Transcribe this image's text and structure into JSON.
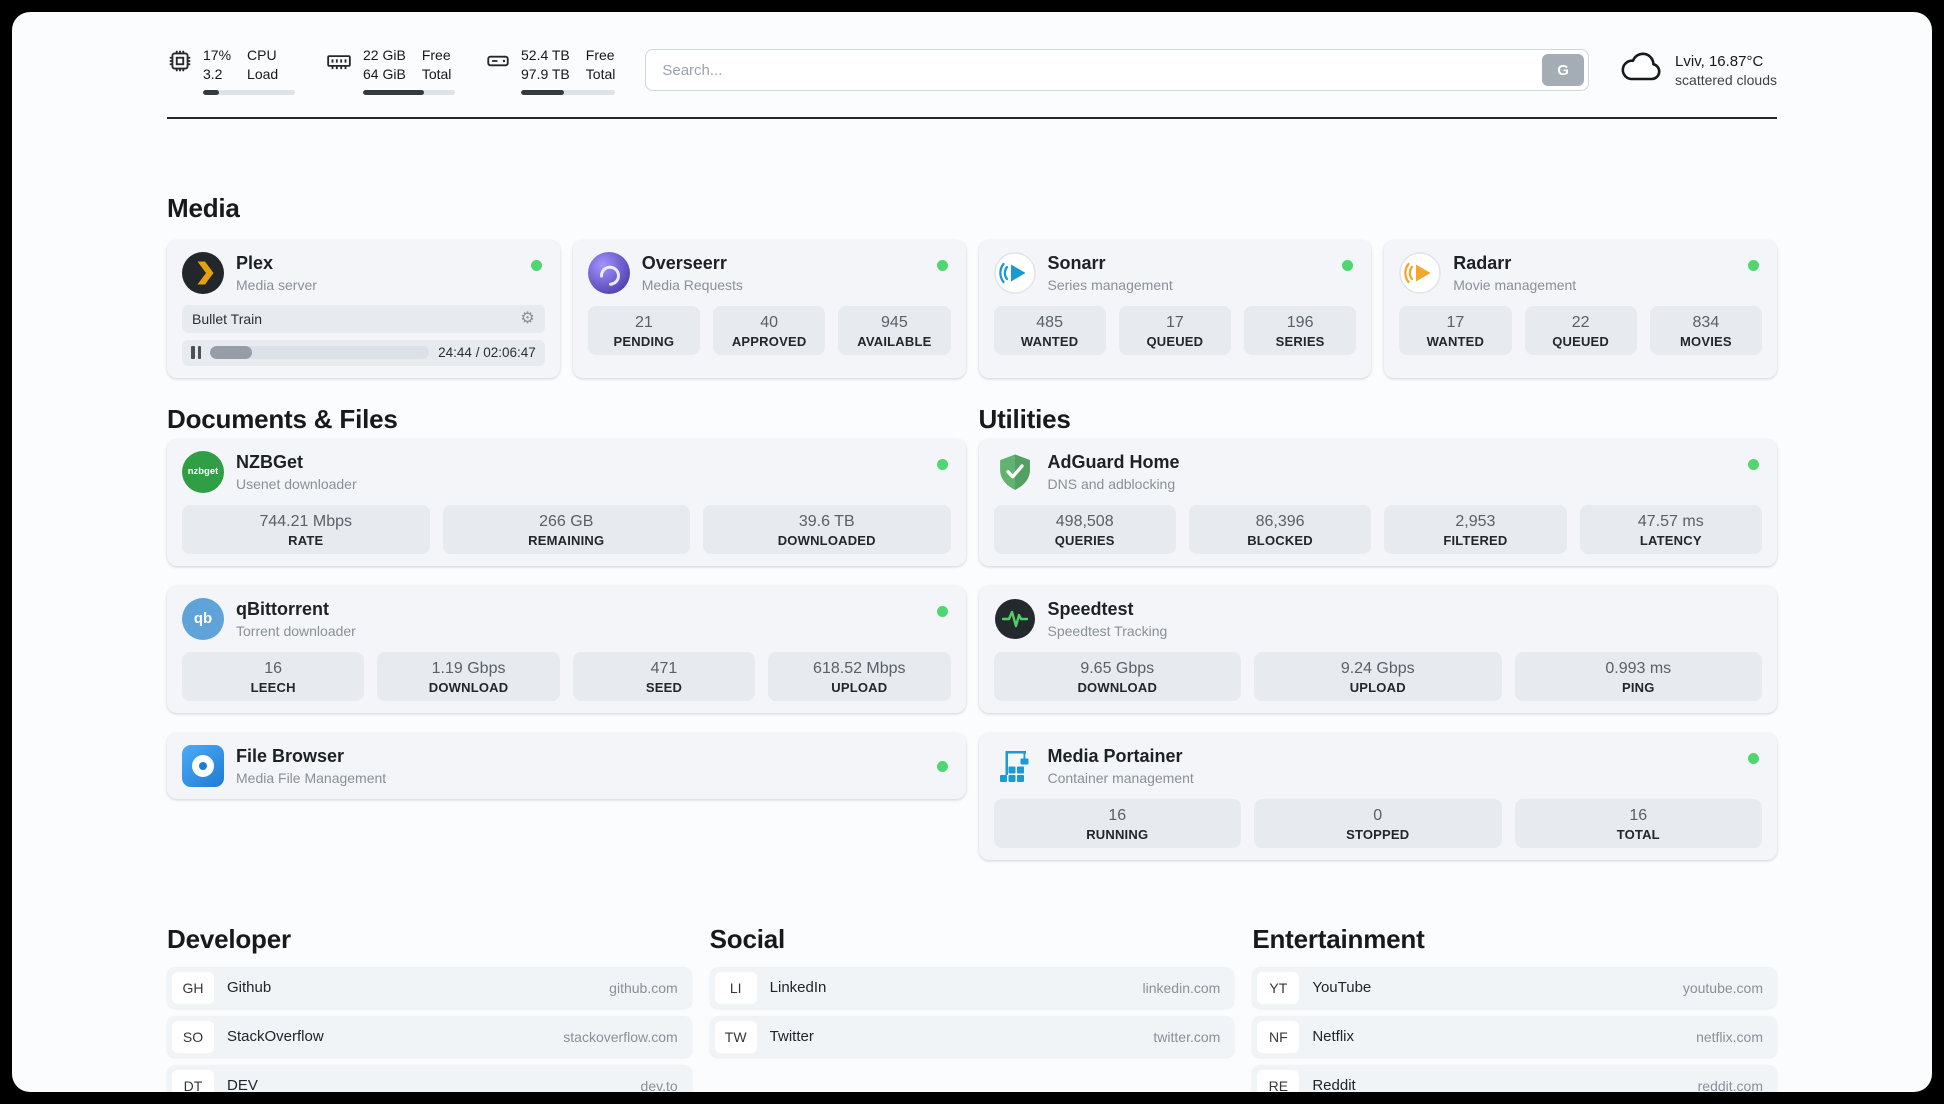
{
  "colors": {
    "status_online": "#4fd671",
    "bar_fill": "#343a40",
    "accent_green": "#51cf66"
  },
  "icons": {
    "gear": "⚙"
  },
  "topbar": {
    "cpu": {
      "value1": "17%",
      "value2": "3.2",
      "label1": "CPU",
      "label2": "Load",
      "bar": 17
    },
    "ram": {
      "value1": "22 GiB",
      "value2": "64 GiB",
      "label1": "Free",
      "label2": "Total",
      "bar": 66
    },
    "disk": {
      "value1": "52.4 TB",
      "value2": "97.9 TB",
      "label1": "Free",
      "label2": "Total",
      "bar": 46
    },
    "search": {
      "placeholder": "Search...",
      "button_label": "G"
    },
    "weather": {
      "location": "Lviv, 16.87°C",
      "condition": "scattered clouds"
    }
  },
  "media": {
    "title": "Media",
    "plex": {
      "name": "Plex",
      "subtitle": "Media server",
      "now_playing": "Bullet Train",
      "time": "24:44 / 02:06:47",
      "progress": 19
    },
    "overseerr": {
      "name": "Overseerr",
      "subtitle": "Media Requests",
      "stats": [
        {
          "value": "21",
          "label": "PENDING"
        },
        {
          "value": "40",
          "label": "APPROVED"
        },
        {
          "value": "945",
          "label": "AVAILABLE"
        }
      ]
    },
    "sonarr": {
      "name": "Sonarr",
      "subtitle": "Series management",
      "stats": [
        {
          "value": "485",
          "label": "WANTED"
        },
        {
          "value": "17",
          "label": "QUEUED"
        },
        {
          "value": "196",
          "label": "SERIES"
        }
      ]
    },
    "radarr": {
      "name": "Radarr",
      "subtitle": "Movie management",
      "stats": [
        {
          "value": "17",
          "label": "WANTED"
        },
        {
          "value": "22",
          "label": "QUEUED"
        },
        {
          "value": "834",
          "label": "MOVIES"
        }
      ]
    }
  },
  "documents": {
    "title": "Documents & Files",
    "nzbget": {
      "name": "NZBGet",
      "subtitle": "Usenet downloader",
      "icon_text": "nzbget",
      "stats": [
        {
          "value": "744.21 Mbps",
          "label": "RATE"
        },
        {
          "value": "266 GB",
          "label": "REMAINING"
        },
        {
          "value": "39.6 TB",
          "label": "DOWNLOADED"
        }
      ]
    },
    "qbittorrent": {
      "name": "qBittorrent",
      "subtitle": "Torrent downloader",
      "icon_text": "qb",
      "stats": [
        {
          "value": "16",
          "label": "LEECH"
        },
        {
          "value": "1.19 Gbps",
          "label": "DOWNLOAD"
        },
        {
          "value": "471",
          "label": "SEED"
        },
        {
          "value": "618.52 Mbps",
          "label": "UPLOAD"
        }
      ]
    },
    "filebrowser": {
      "name": "File Browser",
      "subtitle": "Media File Management"
    }
  },
  "utilities": {
    "title": "Utilities",
    "adguard": {
      "name": "AdGuard Home",
      "subtitle": "DNS and adblocking",
      "stats": [
        {
          "value": "498,508",
          "label": "QUERIES"
        },
        {
          "value": "86,396",
          "label": "BLOCKED"
        },
        {
          "value": "2,953",
          "label": "FILTERED"
        },
        {
          "value": "47.57 ms",
          "label": "LATENCY"
        }
      ]
    },
    "speedtest": {
      "name": "Speedtest",
      "subtitle": "Speedtest Tracking",
      "stats": [
        {
          "value": "9.65 Gbps",
          "label": "DOWNLOAD"
        },
        {
          "value": "9.24 Gbps",
          "label": "UPLOAD"
        },
        {
          "value": "0.993 ms",
          "label": "PING"
        }
      ]
    },
    "portainer": {
      "name": "Media Portainer",
      "subtitle": "Container management",
      "stats": [
        {
          "value": "16",
          "label": "RUNNING"
        },
        {
          "value": "0",
          "label": "STOPPED"
        },
        {
          "value": "16",
          "label": "TOTAL"
        }
      ]
    }
  },
  "bookmarks": {
    "developer": {
      "title": "Developer",
      "items": [
        {
          "abbr": "GH",
          "name": "Github",
          "url": "github.com"
        },
        {
          "abbr": "SO",
          "name": "StackOverflow",
          "url": "stackoverflow.com"
        },
        {
          "abbr": "DT",
          "name": "DEV",
          "url": "dev.to"
        }
      ]
    },
    "social": {
      "title": "Social",
      "items": [
        {
          "abbr": "LI",
          "name": "LinkedIn",
          "url": "linkedin.com"
        },
        {
          "abbr": "TW",
          "name": "Twitter",
          "url": "twitter.com"
        }
      ]
    },
    "entertainment": {
      "title": "Entertainment",
      "items": [
        {
          "abbr": "YT",
          "name": "YouTube",
          "url": "youtube.com"
        },
        {
          "abbr": "NF",
          "name": "Netflix",
          "url": "netflix.com"
        },
        {
          "abbr": "RE",
          "name": "Reddit",
          "url": "reddit.com"
        }
      ]
    }
  }
}
